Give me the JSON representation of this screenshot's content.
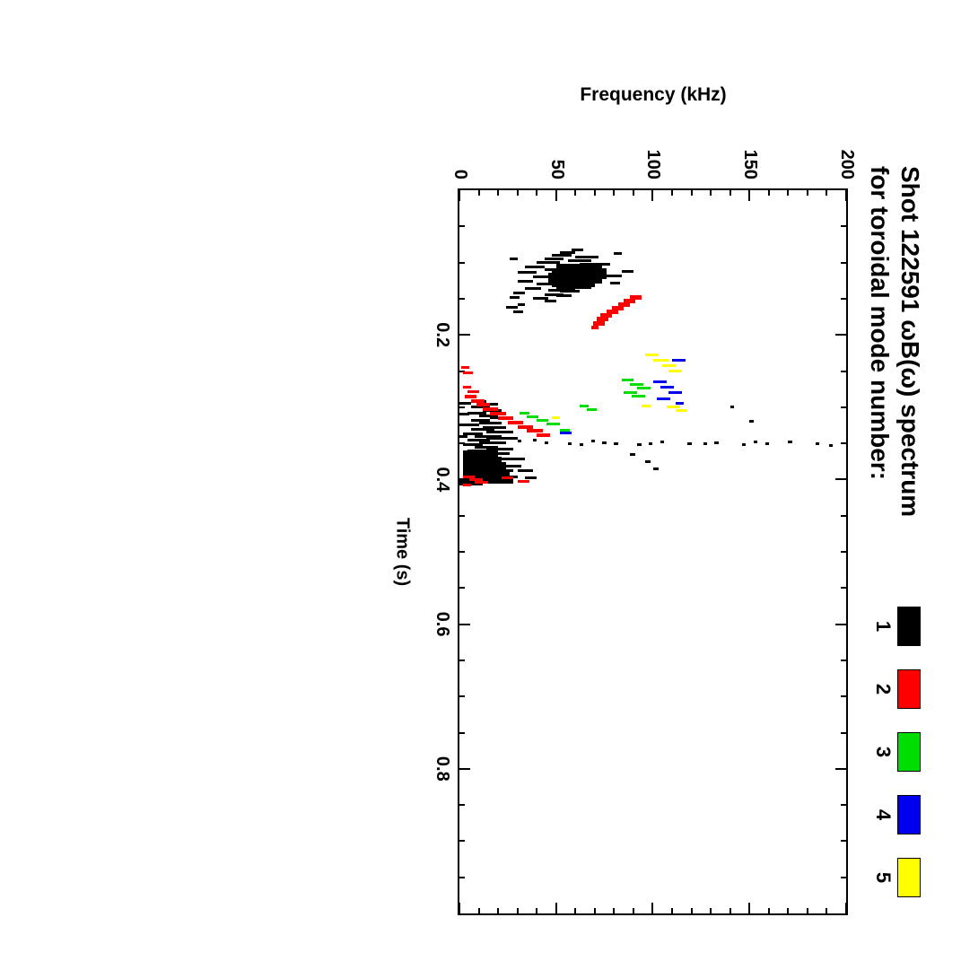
{
  "figure": {
    "title_line1": "Shot 122591 ωB(ω) spectrum",
    "title_line2": "for toroidal mode number:",
    "legend": [
      {
        "label": "1",
        "color": "#000000"
      },
      {
        "label": "2",
        "color": "#ff0000"
      },
      {
        "label": "3",
        "color": "#00dd00"
      },
      {
        "label": "4",
        "color": "#0000ee"
      },
      {
        "label": "5",
        "color": "#ffff00"
      }
    ]
  },
  "chart_data": {
    "type": "scatter",
    "title": "Shot 122591 ωB(ω) spectrum for toroidal mode number: 1 2 3 4 5",
    "xlabel": "Time (s)",
    "ylabel": "Frequency (kHz)",
    "xlim": [
      0,
      1.0
    ],
    "ylim": [
      0,
      200
    ],
    "x_ticks": [
      0.2,
      0.4,
      0.6,
      0.8
    ],
    "x_tick_labels": [
      "0.2",
      "0.4",
      "0.6",
      "0.8"
    ],
    "y_ticks": [
      0,
      50,
      100,
      150,
      200
    ],
    "y_tick_labels": [
      "0",
      "50",
      "100",
      "150",
      "200"
    ],
    "x_minor": 0.05,
    "y_minor": 10,
    "orientation": "entire figure rotated 90 degrees clockwise in the screenshot",
    "grid": false,
    "legend_position": "title line, top right",
    "mark_format": "[time_s, freq_low_kHz, freq_high_kHz, optional_width_px]",
    "series": [
      {
        "name": "1",
        "color": "#000000",
        "marks": [
          [
            0.082,
            58,
            64
          ],
          [
            0.086,
            52,
            60
          ],
          [
            0.09,
            48,
            58
          ],
          [
            0.092,
            60,
            72
          ],
          [
            0.095,
            44,
            54
          ],
          [
            0.097,
            56,
            68
          ],
          [
            0.1,
            40,
            52
          ],
          [
            0.102,
            62,
            78
          ],
          [
            0.104,
            50,
            64
          ],
          [
            0.106,
            34,
            44
          ],
          [
            0.108,
            56,
            74,
            6
          ],
          [
            0.11,
            44,
            58
          ],
          [
            0.112,
            50,
            74,
            10
          ],
          [
            0.114,
            30,
            40
          ],
          [
            0.116,
            48,
            76,
            12
          ],
          [
            0.118,
            62,
            84
          ],
          [
            0.12,
            38,
            48
          ],
          [
            0.122,
            46,
            74,
            12
          ],
          [
            0.124,
            56,
            70
          ],
          [
            0.126,
            30,
            38
          ],
          [
            0.128,
            48,
            70,
            10
          ],
          [
            0.13,
            40,
            50
          ],
          [
            0.132,
            50,
            68,
            8
          ],
          [
            0.134,
            58,
            66
          ],
          [
            0.136,
            34,
            42
          ],
          [
            0.138,
            46,
            60
          ],
          [
            0.14,
            52,
            62
          ],
          [
            0.142,
            28,
            34
          ],
          [
            0.144,
            44,
            54
          ],
          [
            0.146,
            50,
            58
          ],
          [
            0.15,
            38,
            46
          ],
          [
            0.153,
            44,
            50
          ],
          [
            0.088,
            80,
            84
          ],
          [
            0.112,
            84,
            90
          ],
          [
            0.128,
            78,
            83
          ],
          [
            0.095,
            26,
            30
          ],
          [
            0.148,
            26,
            31
          ],
          [
            0.158,
            30,
            34
          ],
          [
            0.162,
            25,
            29
          ],
          [
            0.162,
            24,
            30
          ],
          [
            0.168,
            28,
            33
          ],
          [
            0.292,
            8,
            14
          ],
          [
            0.296,
            12,
            20
          ],
          [
            0.3,
            6,
            16
          ],
          [
            0.304,
            12,
            22
          ],
          [
            0.308,
            4,
            14
          ],
          [
            0.312,
            10,
            20
          ],
          [
            0.315,
            16,
            26
          ],
          [
            0.318,
            6,
            16
          ],
          [
            0.322,
            10,
            22
          ],
          [
            0.325,
            2,
            10
          ],
          [
            0.328,
            12,
            24
          ],
          [
            0.331,
            6,
            18
          ],
          [
            0.334,
            14,
            28
          ],
          [
            0.337,
            2,
            12
          ],
          [
            0.34,
            8,
            22
          ],
          [
            0.343,
            14,
            30
          ],
          [
            0.346,
            4,
            16
          ],
          [
            0.349,
            10,
            24
          ],
          [
            0.352,
            2,
            12
          ],
          [
            0.355,
            8,
            20
          ],
          [
            0.358,
            14,
            28
          ],
          [
            0.361,
            4,
            16
          ],
          [
            0.364,
            10,
            26
          ],
          [
            0.365,
            2,
            20,
            8
          ],
          [
            0.368,
            6,
            18
          ],
          [
            0.371,
            12,
            30
          ],
          [
            0.374,
            2,
            12
          ],
          [
            0.375,
            2,
            22,
            10
          ],
          [
            0.378,
            8,
            24
          ],
          [
            0.381,
            14,
            32
          ],
          [
            0.384,
            4,
            16
          ],
          [
            0.385,
            2,
            24,
            10
          ],
          [
            0.388,
            10,
            28
          ],
          [
            0.391,
            2,
            14
          ],
          [
            0.394,
            6,
            22
          ],
          [
            0.395,
            2,
            26,
            8
          ],
          [
            0.397,
            12,
            30
          ],
          [
            0.4,
            4,
            18
          ],
          [
            0.402,
            0,
            28,
            6
          ],
          [
            0.404,
            8,
            26
          ],
          [
            0.406,
            0,
            12
          ],
          [
            0.295,
            0,
            6
          ],
          [
            0.31,
            0,
            5
          ],
          [
            0.325,
            0,
            7
          ],
          [
            0.34,
            0,
            4
          ],
          [
            0.347,
            30,
            32
          ],
          [
            0.349,
            44,
            46
          ],
          [
            0.351,
            56,
            58
          ],
          [
            0.347,
            68,
            70
          ],
          [
            0.35,
            80,
            82
          ],
          [
            0.352,
            92,
            94
          ],
          [
            0.348,
            104,
            106
          ],
          [
            0.351,
            118,
            120
          ],
          [
            0.349,
            132,
            134
          ],
          [
            0.352,
            146,
            148
          ],
          [
            0.35,
            158,
            160
          ],
          [
            0.348,
            170,
            172
          ],
          [
            0.351,
            184,
            186
          ],
          [
            0.353,
            191,
            193
          ],
          [
            0.346,
            38,
            40
          ],
          [
            0.352,
            62,
            64
          ],
          [
            0.349,
            74,
            76
          ],
          [
            0.35,
            98,
            100
          ],
          [
            0.351,
            126,
            128
          ],
          [
            0.348,
            152,
            154
          ],
          [
            0.365,
            88,
            91
          ],
          [
            0.375,
            96,
            99
          ],
          [
            0.385,
            100,
            103
          ],
          [
            0.372,
            26,
            34
          ],
          [
            0.388,
            30,
            38
          ],
          [
            0.398,
            34,
            40
          ],
          [
            0.3,
            140,
            142
          ],
          [
            0.32,
            150,
            152
          ]
        ]
      },
      {
        "name": "2",
        "color": "#ff0000",
        "marks": [
          [
            0.148,
            88,
            94,
            5
          ],
          [
            0.153,
            85,
            91,
            5
          ],
          [
            0.158,
            82,
            88,
            5
          ],
          [
            0.163,
            79,
            85,
            5
          ],
          [
            0.168,
            76,
            82,
            5
          ],
          [
            0.173,
            73,
            79,
            5
          ],
          [
            0.178,
            71,
            77,
            5
          ],
          [
            0.184,
            69,
            75,
            5
          ],
          [
            0.19,
            68,
            72,
            4
          ],
          [
            0.285,
            3,
            9,
            4
          ],
          [
            0.291,
            6,
            13,
            4
          ],
          [
            0.297,
            9,
            16,
            4
          ],
          [
            0.303,
            12,
            20,
            4
          ],
          [
            0.309,
            16,
            24,
            4
          ],
          [
            0.315,
            20,
            28,
            4
          ],
          [
            0.321,
            25,
            33,
            4
          ],
          [
            0.327,
            30,
            38,
            4
          ],
          [
            0.333,
            35,
            43,
            4
          ],
          [
            0.339,
            40,
            47,
            4
          ],
          [
            0.245,
            1,
            5
          ],
          [
            0.252,
            2,
            7
          ],
          [
            0.272,
            2,
            6
          ],
          [
            0.278,
            4,
            10
          ],
          [
            0.396,
            2,
            8
          ],
          [
            0.4,
            5,
            12
          ],
          [
            0.404,
            8,
            15
          ],
          [
            0.408,
            2,
            6
          ],
          [
            0.398,
            22,
            28
          ],
          [
            0.402,
            30,
            36
          ]
        ]
      },
      {
        "name": "3",
        "color": "#00dd00",
        "marks": [
          [
            0.262,
            84,
            90
          ],
          [
            0.268,
            88,
            95
          ],
          [
            0.274,
            92,
            99
          ],
          [
            0.28,
            85,
            92
          ],
          [
            0.285,
            89,
            96
          ],
          [
            0.298,
            62,
            67
          ],
          [
            0.303,
            66,
            71
          ],
          [
            0.308,
            31,
            36
          ],
          [
            0.313,
            35,
            41
          ],
          [
            0.318,
            40,
            46
          ],
          [
            0.323,
            45,
            52
          ],
          [
            0.332,
            52,
            57
          ]
        ]
      },
      {
        "name": "4",
        "color": "#0000ee",
        "marks": [
          [
            0.235,
            110,
            117
          ],
          [
            0.265,
            100,
            107
          ],
          [
            0.272,
            104,
            111
          ],
          [
            0.28,
            108,
            115
          ],
          [
            0.288,
            102,
            109
          ],
          [
            0.295,
            112,
            116
          ],
          [
            0.335,
            52,
            58
          ]
        ]
      },
      {
        "name": "5",
        "color": "#ffff00",
        "marks": [
          [
            0.228,
            96,
            103
          ],
          [
            0.235,
            100,
            108
          ],
          [
            0.242,
            105,
            112
          ],
          [
            0.25,
            108,
            115
          ],
          [
            0.298,
            94,
            99
          ],
          [
            0.3,
            107,
            114
          ],
          [
            0.305,
            112,
            118
          ],
          [
            0.315,
            48,
            52
          ]
        ]
      }
    ]
  }
}
